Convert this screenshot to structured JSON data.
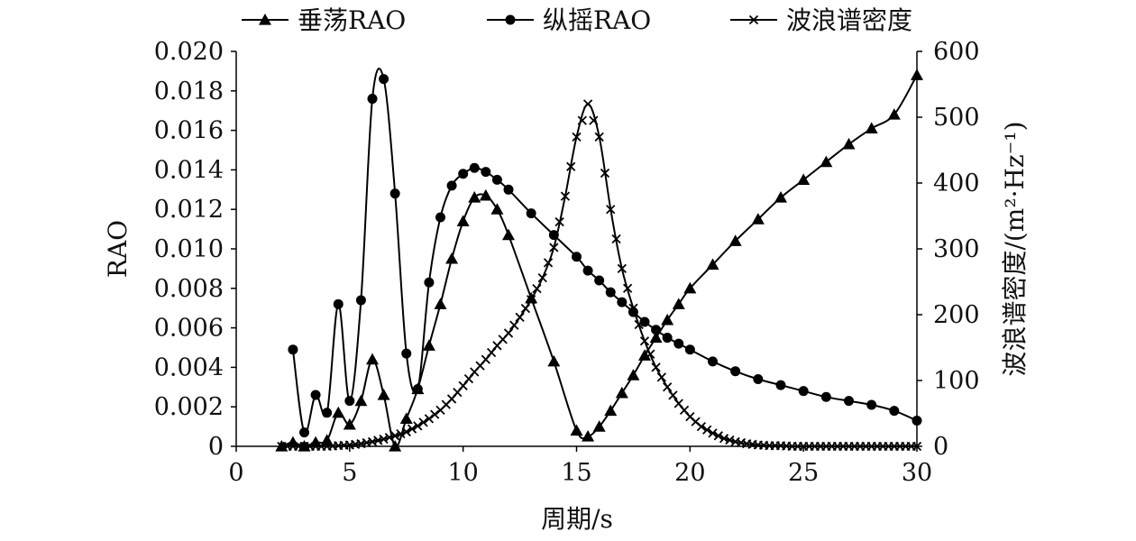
{
  "chart_data": {
    "type": "line",
    "xlabel": "周期/s",
    "ylabel": "RAO",
    "y2label": "波浪谱密度/(m²·Hz⁻¹)",
    "xlim": [
      0,
      30
    ],
    "ylim": [
      0,
      0.02
    ],
    "y2lim": [
      0,
      600
    ],
    "x_ticks": [
      "0",
      "5",
      "10",
      "15",
      "20",
      "25",
      "30"
    ],
    "y_ticks": [
      "0",
      "0.002",
      "0.004",
      "0.006",
      "0.008",
      "0.010",
      "0.012",
      "0.014",
      "0.016",
      "0.018",
      "0.020"
    ],
    "y2_ticks": [
      "0",
      "100",
      "200",
      "300",
      "400",
      "500",
      "600"
    ],
    "grid": false,
    "legend_position": "top",
    "series": [
      {
        "name": "垂荡RAO",
        "axis": "left",
        "marker": "triangle",
        "color": "#000000",
        "x": [
          2,
          2.5,
          3,
          3.5,
          4,
          4.5,
          5,
          5.5,
          6,
          6.5,
          7,
          7.5,
          8,
          8.5,
          9,
          9.5,
          10,
          10.5,
          11,
          11.5,
          12,
          13,
          14,
          15,
          15.5,
          16,
          16.5,
          17,
          17.5,
          18,
          18.5,
          19,
          19.5,
          20,
          21,
          22,
          23,
          24,
          25,
          26,
          27,
          28,
          29,
          30
        ],
        "y": [
          0.0,
          0.0002,
          0.0,
          0.0002,
          0.0003,
          0.0017,
          0.0011,
          0.0023,
          0.0044,
          0.0026,
          0.0,
          0.0014,
          0.0029,
          0.0051,
          0.0072,
          0.0095,
          0.0114,
          0.0126,
          0.0127,
          0.012,
          0.0107,
          0.0075,
          0.0043,
          0.0008,
          0.0005,
          0.001,
          0.0018,
          0.0027,
          0.0036,
          0.0046,
          0.0055,
          0.0064,
          0.0072,
          0.008,
          0.0092,
          0.0104,
          0.0115,
          0.0126,
          0.0135,
          0.0144,
          0.0153,
          0.0161,
          0.0168,
          0.0188
        ]
      },
      {
        "name": "纵摇RAO",
        "axis": "left",
        "marker": "circle",
        "color": "#000000",
        "x": [
          2.5,
          3,
          3.5,
          4,
          4.5,
          5,
          5.5,
          6,
          6.5,
          7,
          7.5,
          8,
          8.5,
          9,
          9.5,
          10,
          10.5,
          11,
          11.5,
          12,
          13,
          14,
          15,
          15.5,
          16,
          16.5,
          17,
          17.5,
          18,
          18.5,
          19,
          19.5,
          20,
          21,
          22,
          23,
          24,
          25,
          26,
          27,
          28,
          29,
          30
        ],
        "y": [
          0.0049,
          0.0007,
          0.0026,
          0.0017,
          0.0072,
          0.0023,
          0.0074,
          0.0176,
          0.0186,
          0.0128,
          0.0047,
          0.0029,
          0.0083,
          0.0116,
          0.0132,
          0.0138,
          0.0141,
          0.0139,
          0.0135,
          0.013,
          0.0118,
          0.0107,
          0.0096,
          0.0089,
          0.0084,
          0.0078,
          0.0073,
          0.0068,
          0.0063,
          0.0059,
          0.0055,
          0.0052,
          0.0049,
          0.0043,
          0.0038,
          0.0034,
          0.0031,
          0.0028,
          0.0025,
          0.0023,
          0.0021,
          0.0018,
          0.0013
        ]
      },
      {
        "name": "波浪谱密度",
        "axis": "right",
        "marker": "x",
        "color": "#000000",
        "x": [
          2,
          2.5,
          3,
          3.5,
          4,
          4.5,
          5,
          5.5,
          6,
          6.5,
          7,
          7.5,
          8,
          8.5,
          9,
          9.5,
          10,
          10.5,
          11,
          11.5,
          12,
          12.5,
          13,
          13.5,
          14,
          14.5,
          15,
          15.5,
          16,
          16.5,
          17,
          17.5,
          18,
          18.5,
          19,
          19.5,
          20,
          20.5,
          21,
          21.5,
          22,
          22.5,
          23,
          23.5,
          24,
          24.5,
          25,
          25.5,
          26,
          26.5,
          27,
          27.5,
          28,
          28.5,
          29,
          29.5,
          30
        ],
        "y": [
          0,
          0,
          0,
          0,
          0,
          1,
          2,
          4,
          7,
          11,
          16,
          22,
          31,
          42,
          55,
          72,
          92,
          113,
          132,
          153,
          172,
          196,
          223,
          256,
          302,
          380,
          470,
          520,
          470,
          360,
          270,
          210,
          160,
          120,
          90,
          65,
          45,
          30,
          20,
          12,
          7,
          4,
          2,
          1,
          1,
          0,
          0,
          0,
          0,
          0,
          0,
          0,
          0,
          0,
          0,
          0,
          0
        ]
      }
    ]
  }
}
